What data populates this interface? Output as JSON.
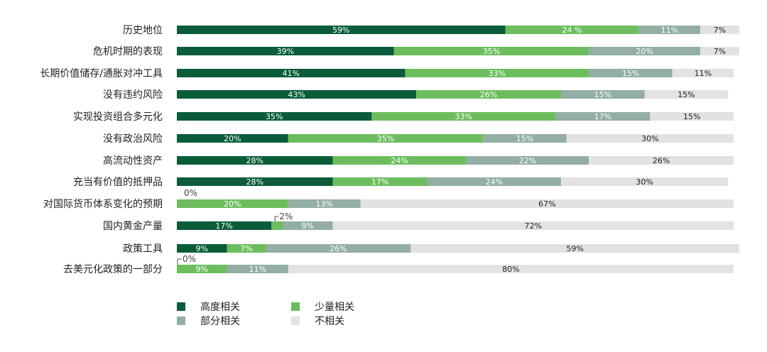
{
  "chart_data": {
    "type": "bar",
    "orientation": "horizontal",
    "stacked": true,
    "categories": [
      "历史地位",
      "危机时期的表现",
      "长期价值储存/通胀对冲工具",
      "没有违约风险",
      "实现投资组合多元化",
      "没有政治风险",
      "高流动性资产",
      "充当有价值的抵押品",
      "对国际货币体系变化的预期",
      "国内黄金产量",
      "政策工具",
      "去美元化政策的一部分"
    ],
    "series": [
      {
        "name": "高度相关",
        "color": "#0a5c3a",
        "values": [
          59,
          39,
          41,
          43,
          35,
          20,
          28,
          28,
          0,
          17,
          9,
          0
        ],
        "labels": [
          "59%",
          "39%",
          "41%",
          "43%",
          "35%",
          "20%",
          "28%",
          "28%",
          "0%",
          "17%",
          "9%",
          "0%"
        ]
      },
      {
        "name": "少量相关",
        "color": "#6dbd5e",
        "values": [
          24,
          35,
          33,
          26,
          33,
          35,
          24,
          17,
          20,
          2,
          7,
          9
        ],
        "labels": [
          "24 %",
          "35%",
          "33%",
          "26%",
          "33%",
          "35%",
          "24%",
          "17%",
          "20%",
          "2%",
          "7%",
          "9%"
        ]
      },
      {
        "name": "部分相关",
        "color": "#93aea2",
        "values": [
          11,
          20,
          15,
          15,
          17,
          15,
          22,
          24,
          13,
          9,
          26,
          11
        ],
        "labels": [
          "11%",
          "20%",
          "15%",
          "15%",
          "17%",
          "15%",
          "22%",
          "24%",
          "13%",
          "9%",
          "26%",
          "11%"
        ]
      },
      {
        "name": "不相关",
        "color": "#e2e2e2",
        "values": [
          7,
          7,
          11,
          15,
          15,
          30,
          26,
          30,
          67,
          72,
          59,
          80
        ],
        "labels": [
          "7%",
          "7%",
          "11%",
          "15%",
          "15%",
          "30%",
          "26%",
          "30%",
          "67%",
          "72%",
          "59%",
          "80%"
        ]
      }
    ],
    "xlim": [
      0,
      100
    ],
    "grid": false,
    "legend_position": "bottom-left"
  }
}
